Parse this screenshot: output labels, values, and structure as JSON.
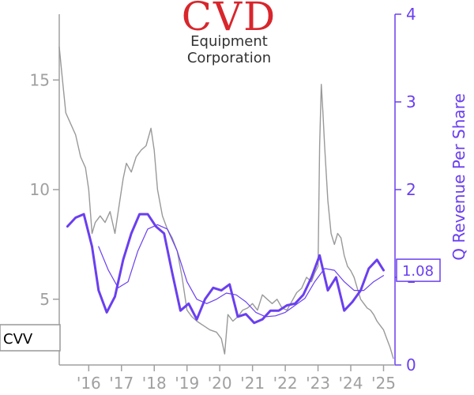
{
  "logo": {
    "top": "CVD",
    "line1": "Equipment",
    "line2": "Corporation"
  },
  "ticker": "CVV",
  "colors": {
    "price": "#999999",
    "revenue": "#6a3ff0",
    "revenue_avg": "#6a3ff0",
    "axis_left": "#a0a0a0",
    "axis_right": "#6a3ff0"
  },
  "chart_data": {
    "type": "line",
    "x_ticks": [
      "'16",
      "'17",
      "'18",
      "'19",
      "'20",
      "'21",
      "'22",
      "'23",
      "'24",
      "'25"
    ],
    "x_tick_values": [
      2016,
      2017,
      2018,
      2019,
      2020,
      2021,
      2022,
      2023,
      2024,
      2025
    ],
    "xlim": [
      2015.1,
      2025.35
    ],
    "y_left": {
      "ticks": [
        5,
        10,
        15
      ],
      "lim": [
        2.0,
        18.0
      ]
    },
    "y_right": {
      "label": "Q Revenue Per Share",
      "ticks": [
        0,
        1,
        2,
        3,
        4
      ],
      "lim": [
        0,
        4
      ]
    },
    "last_value_label": "1.08",
    "series": [
      {
        "axis": "left",
        "style": "price",
        "x": [
          2015.1,
          2015.2,
          2015.3,
          2015.45,
          2015.6,
          2015.75,
          2015.9,
          2016.0,
          2016.1,
          2016.2,
          2016.35,
          2016.5,
          2016.65,
          2016.8,
          2016.95,
          2017.05,
          2017.15,
          2017.3,
          2017.45,
          2017.6,
          2017.75,
          2017.9,
          2018.0,
          2018.1,
          2018.25,
          2018.4,
          2018.55,
          2018.7,
          2018.85,
          2019.0,
          2019.15,
          2019.3,
          2019.5,
          2019.7,
          2019.9,
          2020.05,
          2020.15,
          2020.25,
          2020.4,
          2020.55,
          2020.7,
          2020.85,
          2021.0,
          2021.15,
          2021.3,
          2021.45,
          2021.6,
          2021.75,
          2021.9,
          2022.05,
          2022.2,
          2022.35,
          2022.5,
          2022.65,
          2022.8,
          2022.9,
          2023.0,
          2023.05,
          2023.1,
          2023.15,
          2023.2,
          2023.3,
          2023.4,
          2023.5,
          2023.6,
          2023.7,
          2023.8,
          2023.9,
          2024.0,
          2024.1,
          2024.2,
          2024.3,
          2024.4,
          2024.5,
          2024.6,
          2024.7,
          2024.8,
          2024.9,
          2025.0,
          2025.1,
          2025.2,
          2025.3
        ],
        "y": [
          16.5,
          15.0,
          13.5,
          13.0,
          12.5,
          11.5,
          11.0,
          10.0,
          8.0,
          8.5,
          8.8,
          8.5,
          9.0,
          8.0,
          9.5,
          10.5,
          11.2,
          10.8,
          11.5,
          11.8,
          12.0,
          12.8,
          11.8,
          10.0,
          8.8,
          8.2,
          7.8,
          7.2,
          6.0,
          4.5,
          4.2,
          4.0,
          3.8,
          3.6,
          3.5,
          3.2,
          2.5,
          4.3,
          4.0,
          4.2,
          4.5,
          4.6,
          4.8,
          4.5,
          5.2,
          5.0,
          4.8,
          5.0,
          4.6,
          4.5,
          4.9,
          5.3,
          5.5,
          6.0,
          5.8,
          6.2,
          6.5,
          12.0,
          14.8,
          13.5,
          12.0,
          9.5,
          8.0,
          7.5,
          8.0,
          7.8,
          7.0,
          6.5,
          6.3,
          6.0,
          5.5,
          5.0,
          4.8,
          4.6,
          4.5,
          4.3,
          4.0,
          3.8,
          3.6,
          3.2,
          2.8,
          2.3
        ]
      },
      {
        "axis": "right",
        "style": "revenue",
        "x": [
          2015.35,
          2015.6,
          2015.85,
          2016.1,
          2016.3,
          2016.55,
          2016.8,
          2017.05,
          2017.3,
          2017.55,
          2017.8,
          2018.05,
          2018.3,
          2018.55,
          2018.8,
          2019.05,
          2019.3,
          2019.55,
          2019.8,
          2020.05,
          2020.3,
          2020.55,
          2020.8,
          2021.05,
          2021.3,
          2021.55,
          2021.8,
          2022.05,
          2022.3,
          2022.55,
          2022.8,
          2023.05,
          2023.3,
          2023.55,
          2023.8,
          2024.05,
          2024.3,
          2024.55,
          2024.8,
          2025.0
        ],
        "y": [
          1.58,
          1.68,
          1.72,
          1.35,
          0.85,
          0.6,
          0.78,
          1.2,
          1.5,
          1.72,
          1.72,
          1.58,
          1.5,
          1.05,
          0.62,
          0.7,
          0.52,
          0.75,
          0.88,
          0.85,
          0.92,
          0.55,
          0.58,
          0.48,
          0.52,
          0.62,
          0.62,
          0.68,
          0.7,
          0.8,
          1.0,
          1.25,
          0.85,
          1.0,
          0.62,
          0.72,
          0.85,
          1.1,
          1.2,
          1.08
        ]
      },
      {
        "axis": "right",
        "style": "revenue_avg",
        "x": [
          2016.3,
          2016.6,
          2016.9,
          2017.2,
          2017.5,
          2017.8,
          2018.1,
          2018.4,
          2018.7,
          2019.0,
          2019.3,
          2019.6,
          2019.9,
          2020.2,
          2020.5,
          2020.8,
          2021.1,
          2021.4,
          2021.7,
          2022.0,
          2022.3,
          2022.6,
          2022.9,
          2023.2,
          2023.5,
          2023.8,
          2024.1,
          2024.4,
          2024.7,
          2025.0
        ],
        "y": [
          1.35,
          1.08,
          0.88,
          0.95,
          1.3,
          1.55,
          1.6,
          1.55,
          1.3,
          0.95,
          0.75,
          0.7,
          0.75,
          0.82,
          0.8,
          0.72,
          0.6,
          0.55,
          0.56,
          0.6,
          0.68,
          0.76,
          0.95,
          1.1,
          1.08,
          0.95,
          0.85,
          0.85,
          0.95,
          1.02
        ]
      }
    ]
  }
}
